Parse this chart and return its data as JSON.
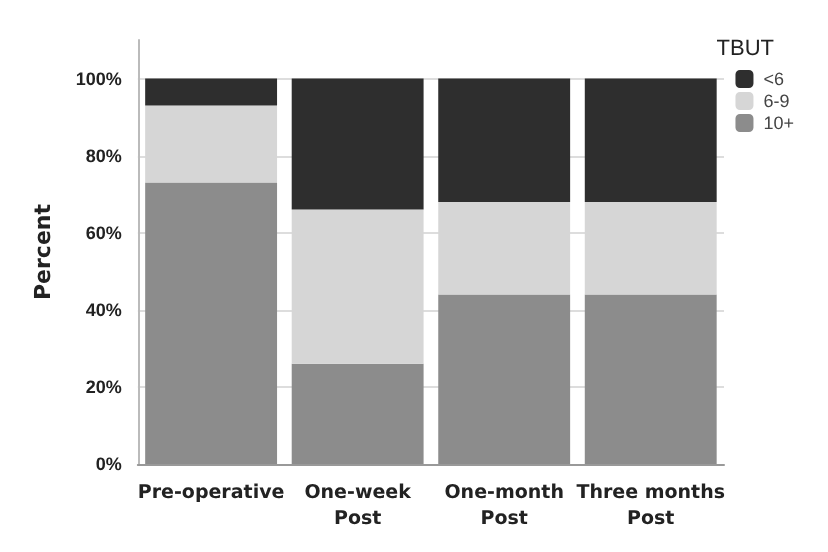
{
  "chart_data": {
    "type": "bar",
    "stacked": true,
    "ylabel": "Percent",
    "legend_title": "TBUT",
    "legend": "top right",
    "grid": "y",
    "categories": [
      "Pre-operative",
      "One-week\nPost",
      "One-month\nPost",
      "Three months\nPost"
    ],
    "ylim": [
      0,
      110
    ],
    "yticks": [
      {
        "value": 0,
        "label": "0%"
      },
      {
        "value": 20,
        "label": "20%"
      },
      {
        "value": 40,
        "label": "40%"
      },
      {
        "value": 60,
        "label": "60%"
      },
      {
        "value": 80,
        "label": "80%"
      },
      {
        "value": 100,
        "label": "100%"
      }
    ],
    "series": [
      {
        "name": "10+",
        "color": "#8c8c8c",
        "values": [
          73,
          26,
          44,
          44
        ]
      },
      {
        "name": "6-9",
        "color": "#d6d6d6",
        "values": [
          20,
          40,
          24,
          24
        ]
      },
      {
        "name": "<6",
        "color": "#2e2e2e",
        "values": [
          7,
          34,
          32,
          32
        ]
      }
    ]
  }
}
